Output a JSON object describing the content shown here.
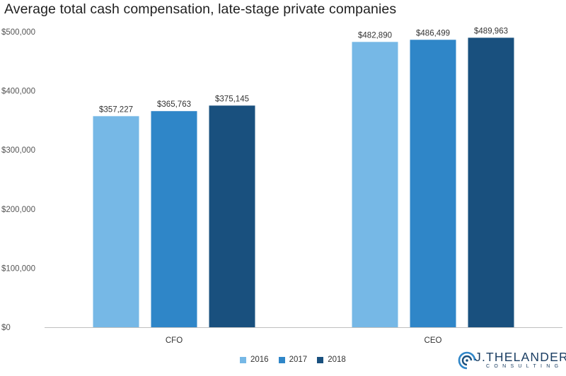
{
  "chart_data": {
    "type": "bar",
    "title": "Average total cash compensation, late-stage private companies",
    "categories": [
      "CFO",
      "CEO"
    ],
    "series": [
      {
        "name": "2016",
        "values": [
          357227,
          482890
        ],
        "labels": [
          "$357,227",
          "$482,890"
        ],
        "color": "#76b8e6"
      },
      {
        "name": "2017",
        "values": [
          365763,
          486499
        ],
        "labels": [
          "$365,763",
          "$486,499"
        ],
        "color": "#2f86c8"
      },
      {
        "name": "2018",
        "values": [
          375145,
          489963
        ],
        "labels": [
          "$375,145",
          "$489,963"
        ],
        "color": "#19507e"
      }
    ],
    "yticks": [
      0,
      100000,
      200000,
      300000,
      400000,
      500000
    ],
    "ytick_labels": [
      "$0",
      "$100,000",
      "$200,000",
      "$300,000",
      "$400,000",
      "$500,000"
    ],
    "ylim": [
      0,
      500000
    ],
    "grid": false,
    "legend_position": "bottom-center"
  },
  "logo": {
    "name": "J.THELANDER",
    "sub": "CONSULTING",
    "icon": "spiral-logo-icon"
  }
}
